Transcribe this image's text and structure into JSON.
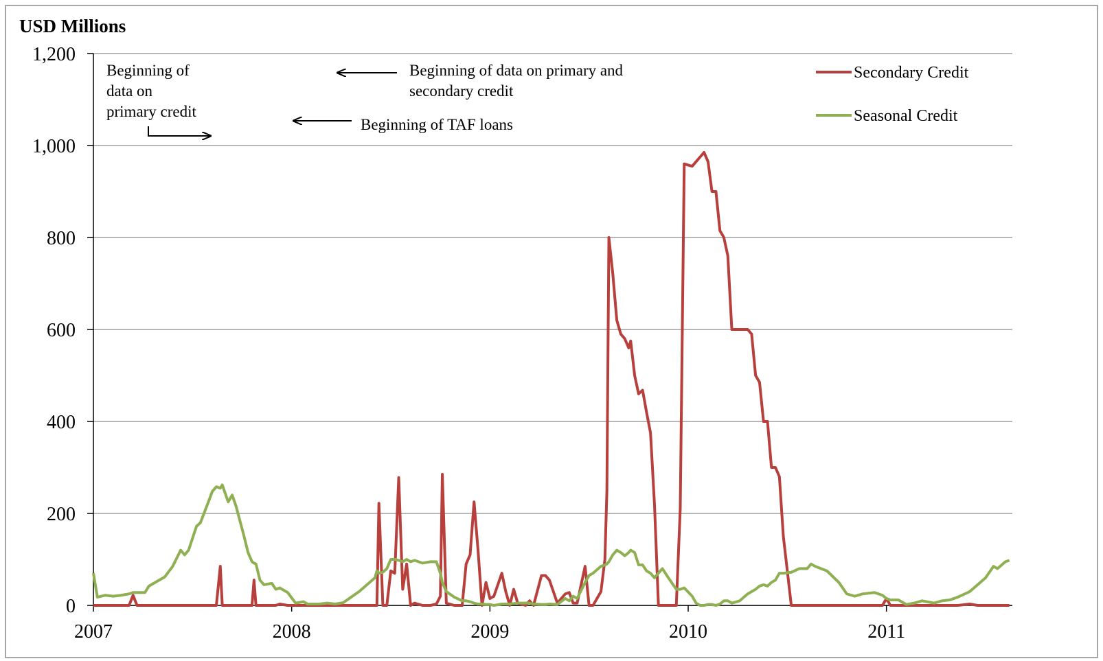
{
  "chart_data": {
    "type": "line",
    "title": "USD Millions",
    "x": [
      2007.0,
      2007.02,
      2007.06,
      2007.1,
      2007.14,
      2007.18,
      2007.2,
      2007.22,
      2007.26,
      2007.28,
      2007.32,
      2007.36,
      2007.4,
      2007.44,
      2007.46,
      2007.48,
      2007.52,
      2007.54,
      2007.58,
      2007.6,
      2007.62,
      2007.64,
      2007.65,
      2007.68,
      2007.7,
      2007.72,
      2007.76,
      2007.78,
      2007.8,
      2007.81,
      2007.82,
      2007.84,
      2007.86,
      2007.9,
      2007.92,
      2007.94,
      2007.98,
      2008.02,
      2008.06,
      2008.08,
      2008.14,
      2008.18,
      2008.22,
      2008.26,
      2008.3,
      2008.34,
      2008.38,
      2008.42,
      2008.43,
      2008.44,
      2008.46,
      2008.48,
      2008.5,
      2008.52,
      2008.54,
      2008.56,
      2008.58,
      2008.6,
      2008.62,
      2008.66,
      2008.7,
      2008.73,
      2008.75,
      2008.76,
      2008.78,
      2008.82,
      2008.86,
      2008.88,
      2008.9,
      2008.92,
      2008.94,
      2008.96,
      2008.98,
      2009.0,
      2009.02,
      2009.06,
      2009.08,
      2009.1,
      2009.12,
      2009.14,
      2009.18,
      2009.2,
      2009.22,
      2009.26,
      2009.28,
      2009.3,
      2009.34,
      2009.38,
      2009.4,
      2009.42,
      2009.44,
      2009.48,
      2009.5,
      2009.52,
      2009.56,
      2009.58,
      2009.59,
      2009.6,
      2009.62,
      2009.64,
      2009.66,
      2009.68,
      2009.7,
      2009.71,
      2009.73,
      2009.75,
      2009.77,
      2009.79,
      2009.81,
      2009.83,
      2009.85,
      2009.87,
      2009.9,
      2009.94,
      2009.96,
      2009.98,
      2010.02,
      2010.04,
      2010.06,
      2010.08,
      2010.1,
      2010.12,
      2010.14,
      2010.16,
      2010.18,
      2010.2,
      2010.22,
      2010.26,
      2010.3,
      2010.32,
      2010.34,
      2010.36,
      2010.38,
      2010.4,
      2010.42,
      2010.44,
      2010.46,
      2010.48,
      2010.52,
      2010.56,
      2010.6,
      2010.62,
      2010.64,
      2010.7,
      2010.76,
      2010.8,
      2010.84,
      2010.88,
      2010.94,
      2010.98,
      2011.0,
      2011.02,
      2011.06,
      2011.1,
      2011.14,
      2011.18,
      2011.24,
      2011.28,
      2011.32,
      2011.36,
      2011.42,
      2011.46,
      2011.5,
      2011.54,
      2011.56,
      2011.6,
      2011.62
    ],
    "series": [
      {
        "name": "Secondary Credit",
        "color": "#b7403c",
        "values": [
          0,
          0,
          0,
          0,
          0,
          0,
          22,
          0,
          0,
          0,
          0,
          0,
          0,
          0,
          0,
          0,
          0,
          0,
          0,
          0,
          0,
          85,
          0,
          0,
          0,
          0,
          0,
          0,
          0,
          55,
          0,
          0,
          0,
          0,
          0,
          3,
          0,
          0,
          0,
          0,
          0,
          0,
          0,
          0,
          0,
          0,
          0,
          0,
          0,
          222,
          0,
          0,
          75,
          70,
          278,
          35,
          90,
          0,
          5,
          0,
          0,
          3,
          20,
          285,
          5,
          0,
          0,
          90,
          110,
          225,
          120,
          0,
          50,
          15,
          20,
          70,
          30,
          0,
          35,
          5,
          0,
          10,
          0,
          65,
          65,
          55,
          5,
          25,
          28,
          5,
          5,
          85,
          0,
          0,
          30,
          100,
          250,
          800,
          720,
          620,
          590,
          580,
          560,
          575,
          500,
          460,
          468,
          420,
          375,
          220,
          0,
          0,
          0,
          0,
          210,
          960,
          955,
          965,
          975,
          985,
          965,
          900,
          900,
          815,
          800,
          760,
          600,
          600,
          600,
          590,
          500,
          485,
          400,
          400,
          300,
          300,
          280,
          150,
          0,
          0,
          0,
          0,
          0,
          0,
          0,
          0,
          0,
          0,
          0,
          0,
          15,
          0,
          0,
          0,
          0,
          0,
          0,
          0,
          0,
          0,
          3,
          0,
          0,
          0,
          0,
          0,
          0
        ]
      },
      {
        "name": "Seasonal Credit",
        "color": "#8fb052",
        "values": [
          70,
          18,
          22,
          20,
          22,
          25,
          28,
          28,
          28,
          42,
          52,
          62,
          85,
          120,
          110,
          120,
          172,
          180,
          225,
          248,
          258,
          255,
          262,
          225,
          240,
          215,
          150,
          115,
          95,
          92,
          90,
          55,
          45,
          48,
          35,
          38,
          28,
          5,
          8,
          3,
          3,
          5,
          3,
          6,
          18,
          30,
          45,
          60,
          75,
          70,
          72,
          80,
          100,
          100,
          98,
          95,
          100,
          95,
          98,
          92,
          95,
          95,
          70,
          50,
          30,
          18,
          10,
          10,
          8,
          5,
          3,
          3,
          2,
          2,
          0,
          3,
          3,
          3,
          4,
          5,
          5,
          5,
          3,
          2,
          2,
          3,
          2,
          15,
          10,
          20,
          15,
          50,
          65,
          70,
          85,
          88,
          90,
          95,
          110,
          120,
          115,
          108,
          115,
          120,
          115,
          88,
          88,
          75,
          70,
          60,
          70,
          80,
          60,
          35,
          35,
          38,
          20,
          5,
          0,
          0,
          2,
          2,
          0,
          3,
          10,
          10,
          5,
          10,
          25,
          30,
          35,
          42,
          45,
          42,
          50,
          55,
          70,
          70,
          72,
          80,
          80,
          90,
          85,
          75,
          50,
          25,
          20,
          25,
          28,
          22,
          15,
          12,
          12,
          2,
          5,
          10,
          5,
          10,
          12,
          18,
          30,
          45,
          60,
          85,
          80,
          95,
          98
        ]
      }
    ],
    "xlim": [
      2007,
      2011.635
    ],
    "xticks": [
      2007,
      2008,
      2009,
      2010,
      2011
    ],
    "ylim": [
      0,
      1200
    ],
    "yticks": [
      0,
      200,
      400,
      600,
      800,
      {
        "value": 1000,
        "label": "1,000"
      },
      {
        "value": 1200,
        "label": "1,200"
      }
    ],
    "grid": true,
    "legend": "top-right",
    "annotations": [
      {
        "lines": [
          "Beginning of",
          "data on",
          "primary credit"
        ]
      },
      {
        "lines": [
          "Beginning of data on primary and",
          "secondary credit"
        ]
      },
      {
        "lines": [
          "Beginning of TAF loans"
        ]
      }
    ]
  }
}
